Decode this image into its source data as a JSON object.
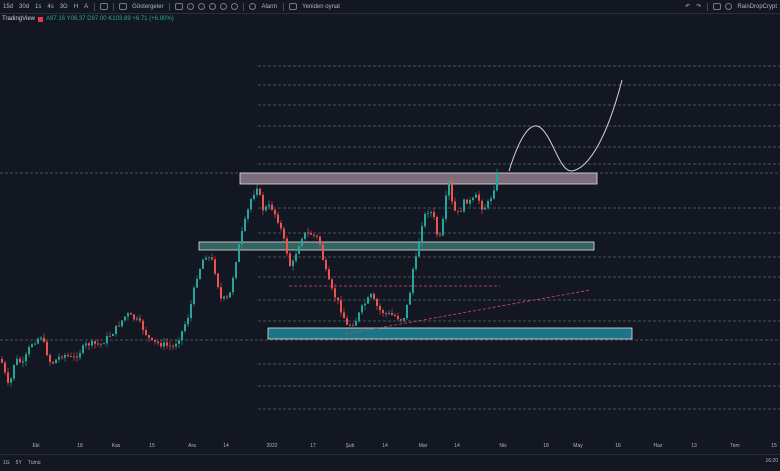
{
  "toolbar": {
    "timeframes": [
      "15d",
      "30d",
      "1s",
      "4s",
      "3G",
      "H",
      "A"
    ],
    "indicators_label": "Göstergeler",
    "alarm_label": "Alarm",
    "replay_label": "Yeniden oynat",
    "user_label": "RainDropCrypt"
  },
  "legend": {
    "brand": "TradingView",
    "ohlc": "A97.16 Y06.37 D97.00 K103.89 +6.71 (+6.90%)"
  },
  "x_axis": {
    "labels": [
      "Eki",
      "18",
      "Kas",
      "15",
      "Ara",
      "14",
      "2022",
      "17",
      "Şub",
      "14",
      "Mar",
      "14",
      "Nis",
      "18",
      "May",
      "16",
      "Haz",
      "13",
      "Tem",
      "15"
    ]
  },
  "bottom": {
    "ranges": [
      "1G",
      "5Y",
      "Tümü"
    ],
    "clock": "16:20"
  },
  "colors": {
    "background": "#131722",
    "up": "#26a69a",
    "down": "#ef5350",
    "grid_dash": "#8a8e99",
    "zone_resistance": "#8e7d89",
    "zone_support_mid": "#3f7771",
    "zone_support_low": "#1d8da1"
  }
}
